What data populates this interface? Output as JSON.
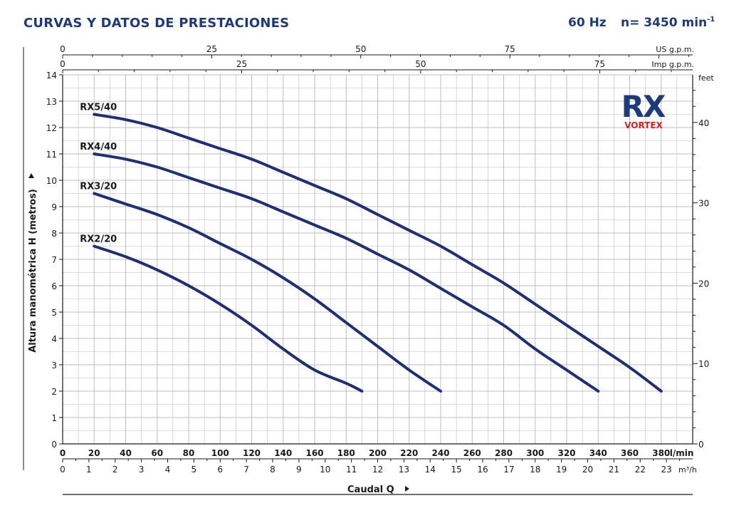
{
  "header": {
    "title": "CURVAS Y DATOS DE PRESTACIONES",
    "frequency": "60 Hz",
    "speed_label": "n= 3450 min",
    "speed_exp": "-1"
  },
  "logo": {
    "text_main": "RX",
    "text_sub": "VORTEX",
    "color_main": "#1f3a78",
    "color_sub": "#d32027"
  },
  "colors": {
    "curve": "#1f2f74",
    "title": "#1f3a78",
    "grid": "#bdbdbd"
  },
  "chart_data": {
    "type": "line",
    "ylabel": "Altura manométrica H (metros)",
    "ylim": [
      0,
      14
    ],
    "y_ticks": [
      0,
      1,
      2,
      3,
      4,
      5,
      6,
      7,
      8,
      9,
      10,
      11,
      12,
      13,
      14
    ],
    "y_right_label": "feet",
    "y_right_ticks": [
      0,
      10,
      20,
      30,
      40
    ],
    "xlabel": "Caudal Q",
    "xlim": [
      0,
      400
    ],
    "x_unit": "l/min",
    "x_ticks": [
      0,
      20,
      40,
      60,
      80,
      100,
      120,
      140,
      160,
      180,
      200,
      220,
      240,
      260,
      280,
      300,
      320,
      340,
      360,
      380
    ],
    "x_m3h_unit": "m³/h",
    "x_m3h_ticks": [
      0,
      1,
      2,
      3,
      4,
      5,
      6,
      7,
      8,
      9,
      10,
      11,
      12,
      13,
      14,
      15,
      16,
      17,
      18,
      19,
      20,
      21,
      22,
      23
    ],
    "x_us_unit": "US g.p.m.",
    "x_us_ticks": [
      0,
      25,
      50,
      75
    ],
    "x_imp_unit": "Imp g.p.m.",
    "x_imp_ticks": [
      0,
      25,
      50,
      75
    ],
    "grid": true,
    "series": [
      {
        "name": "RX2/20",
        "x": [
          20,
          40,
          60,
          80,
          100,
          120,
          140,
          160,
          180,
          190
        ],
        "y": [
          7.5,
          7.1,
          6.6,
          6.0,
          5.3,
          4.5,
          3.6,
          2.8,
          2.3,
          2.0
        ]
      },
      {
        "name": "RX3/20",
        "x": [
          20,
          40,
          60,
          80,
          100,
          120,
          140,
          160,
          180,
          200,
          220,
          240
        ],
        "y": [
          9.5,
          9.1,
          8.7,
          8.2,
          7.6,
          7.0,
          6.3,
          5.5,
          4.6,
          3.7,
          2.8,
          2.0
        ]
      },
      {
        "name": "RX4/40",
        "x": [
          20,
          40,
          60,
          80,
          100,
          120,
          140,
          160,
          180,
          200,
          220,
          240,
          260,
          280,
          300,
          320,
          340
        ],
        "y": [
          11.0,
          10.8,
          10.5,
          10.1,
          9.7,
          9.3,
          8.8,
          8.3,
          7.8,
          7.2,
          6.6,
          5.9,
          5.2,
          4.5,
          3.6,
          2.8,
          2.0
        ]
      },
      {
        "name": "RX5/40",
        "x": [
          20,
          40,
          60,
          80,
          100,
          120,
          140,
          160,
          180,
          200,
          220,
          240,
          260,
          280,
          300,
          320,
          340,
          360,
          380
        ],
        "y": [
          12.5,
          12.3,
          12.0,
          11.6,
          11.2,
          10.8,
          10.3,
          9.8,
          9.3,
          8.7,
          8.1,
          7.5,
          6.8,
          6.1,
          5.3,
          4.5,
          3.7,
          2.9,
          2.0
        ]
      }
    ]
  }
}
